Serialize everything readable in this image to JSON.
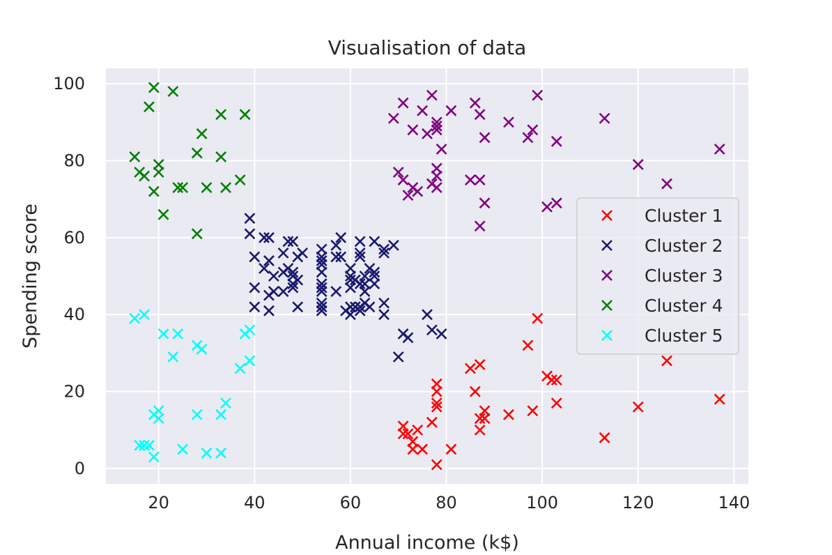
{
  "chart_data": {
    "type": "scatter",
    "title": "Visualisation of data",
    "xlabel": "Annual income (k$)",
    "ylabel": "Spending score",
    "xlim": [
      9,
      143
    ],
    "ylim": [
      -4,
      104
    ],
    "xticks": [
      20,
      40,
      60,
      80,
      100,
      120,
      140
    ],
    "yticks": [
      0,
      20,
      40,
      60,
      80,
      100
    ],
    "grid": true,
    "marker": "x",
    "legend_position": "center-right",
    "series": [
      {
        "name": "Cluster 1",
        "color": "#ff0000",
        "points": [
          [
            71,
            11
          ],
          [
            71,
            9
          ],
          [
            72,
            9
          ],
          [
            73,
            5
          ],
          [
            73,
            7
          ],
          [
            74,
            10
          ],
          [
            75,
            5
          ],
          [
            77,
            12
          ],
          [
            78,
            1
          ],
          [
            78,
            16
          ],
          [
            78,
            17
          ],
          [
            78,
            20
          ],
          [
            78,
            22
          ],
          [
            81,
            5
          ],
          [
            85,
            26
          ],
          [
            86,
            20
          ],
          [
            87,
            10
          ],
          [
            87,
            13
          ],
          [
            87,
            27
          ],
          [
            88,
            13
          ],
          [
            88,
            15
          ],
          [
            93,
            14
          ],
          [
            97,
            32
          ],
          [
            98,
            15
          ],
          [
            99,
            39
          ],
          [
            101,
            24
          ],
          [
            102,
            23
          ],
          [
            103,
            17
          ],
          [
            103,
            23
          ],
          [
            113,
            8
          ],
          [
            120,
            16
          ],
          [
            126,
            28
          ],
          [
            137,
            18
          ]
        ]
      },
      {
        "name": "Cluster 2",
        "color": "#191970",
        "points": [
          [
            39,
            65
          ],
          [
            39,
            61
          ],
          [
            40,
            55
          ],
          [
            40,
            47
          ],
          [
            40,
            42
          ],
          [
            42,
            52
          ],
          [
            42,
            60
          ],
          [
            43,
            54
          ],
          [
            43,
            60
          ],
          [
            43,
            45
          ],
          [
            43,
            41
          ],
          [
            44,
            50
          ],
          [
            44,
            46
          ],
          [
            46,
            51
          ],
          [
            46,
            46
          ],
          [
            46,
            56
          ],
          [
            47,
            52
          ],
          [
            47,
            59
          ],
          [
            48,
            59
          ],
          [
            48,
            51
          ],
          [
            48,
            50
          ],
          [
            48,
            48
          ],
          [
            48,
            47
          ],
          [
            49,
            55
          ],
          [
            49,
            42
          ],
          [
            49,
            49
          ],
          [
            50,
            56
          ],
          [
            54,
            57
          ],
          [
            54,
            55
          ],
          [
            54,
            54
          ],
          [
            54,
            53
          ],
          [
            54,
            51
          ],
          [
            54,
            48
          ],
          [
            54,
            47
          ],
          [
            54,
            46
          ],
          [
            54,
            43
          ],
          [
            54,
            42
          ],
          [
            54,
            41
          ],
          [
            57,
            58
          ],
          [
            57,
            55
          ],
          [
            57,
            46
          ],
          [
            58,
            60
          ],
          [
            58,
            55
          ],
          [
            59,
            41
          ],
          [
            60,
            49
          ],
          [
            60,
            40
          ],
          [
            60,
            42
          ],
          [
            60,
            52
          ],
          [
            60,
            47
          ],
          [
            60,
            50
          ],
          [
            61,
            42
          ],
          [
            61,
            49
          ],
          [
            62,
            41
          ],
          [
            62,
            48
          ],
          [
            62,
            59
          ],
          [
            62,
            55
          ],
          [
            62,
            56
          ],
          [
            62,
            42
          ],
          [
            63,
            50
          ],
          [
            63,
            46
          ],
          [
            63,
            43
          ],
          [
            63,
            48
          ],
          [
            64,
            52
          ],
          [
            64,
            42
          ],
          [
            65,
            51
          ],
          [
            65,
            59
          ],
          [
            65,
            50
          ],
          [
            65,
            48
          ],
          [
            67,
            56
          ],
          [
            67,
            40
          ],
          [
            67,
            43
          ],
          [
            67,
            57
          ],
          [
            69,
            58
          ],
          [
            70,
            29
          ],
          [
            71,
            35
          ],
          [
            72,
            34
          ],
          [
            76,
            40
          ],
          [
            77,
            36
          ],
          [
            79,
            35
          ]
        ]
      },
      {
        "name": "Cluster 3",
        "color": "#800080",
        "points": [
          [
            69,
            91
          ],
          [
            70,
            77
          ],
          [
            71,
            95
          ],
          [
            71,
            75
          ],
          [
            72,
            71
          ],
          [
            73,
            88
          ],
          [
            73,
            73
          ],
          [
            74,
            72
          ],
          [
            75,
            93
          ],
          [
            76,
            87
          ],
          [
            77,
            97
          ],
          [
            77,
            74
          ],
          [
            78,
            90
          ],
          [
            78,
            88
          ],
          [
            78,
            89
          ],
          [
            78,
            76
          ],
          [
            78,
            78
          ],
          [
            78,
            73
          ],
          [
            79,
            83
          ],
          [
            81,
            93
          ],
          [
            85,
            75
          ],
          [
            86,
            95
          ],
          [
            87,
            75
          ],
          [
            87,
            63
          ],
          [
            87,
            92
          ],
          [
            88,
            86
          ],
          [
            88,
            69
          ],
          [
            93,
            90
          ],
          [
            97,
            86
          ],
          [
            98,
            88
          ],
          [
            99,
            97
          ],
          [
            101,
            68
          ],
          [
            103,
            85
          ],
          [
            103,
            69
          ],
          [
            113,
            91
          ],
          [
            120,
            79
          ],
          [
            126,
            74
          ],
          [
            137,
            83
          ]
        ]
      },
      {
        "name": "Cluster 4",
        "color": "#008000",
        "points": [
          [
            15,
            81
          ],
          [
            16,
            77
          ],
          [
            17,
            76
          ],
          [
            18,
            94
          ],
          [
            19,
            72
          ],
          [
            19,
            99
          ],
          [
            20,
            77
          ],
          [
            20,
            79
          ],
          [
            21,
            66
          ],
          [
            23,
            98
          ],
          [
            24,
            73
          ],
          [
            25,
            73
          ],
          [
            28,
            82
          ],
          [
            28,
            61
          ],
          [
            29,
            87
          ],
          [
            30,
            73
          ],
          [
            33,
            92
          ],
          [
            33,
            81
          ],
          [
            34,
            73
          ],
          [
            37,
            75
          ],
          [
            38,
            92
          ]
        ]
      },
      {
        "name": "Cluster 5",
        "color": "#00ffff",
        "points": [
          [
            15,
            39
          ],
          [
            16,
            6
          ],
          [
            17,
            40
          ],
          [
            17,
            6
          ],
          [
            18,
            6
          ],
          [
            19,
            3
          ],
          [
            19,
            14
          ],
          [
            20,
            15
          ],
          [
            20,
            13
          ],
          [
            21,
            35
          ],
          [
            23,
            29
          ],
          [
            24,
            35
          ],
          [
            25,
            5
          ],
          [
            28,
            14
          ],
          [
            28,
            32
          ],
          [
            29,
            31
          ],
          [
            30,
            4
          ],
          [
            33,
            4
          ],
          [
            33,
            14
          ],
          [
            34,
            17
          ],
          [
            37,
            26
          ],
          [
            38,
            35
          ],
          [
            39,
            36
          ],
          [
            39,
            28
          ]
        ]
      }
    ]
  }
}
